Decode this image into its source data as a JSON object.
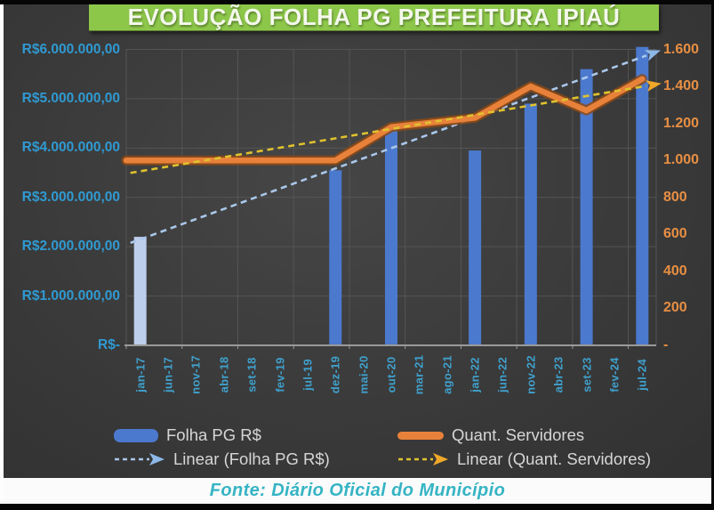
{
  "title": "EVOLUÇÃO FOLHA PG PREFEITURA IPIAÚ",
  "source": "Fonte: Diário Oficial do Município",
  "legend": {
    "items": [
      {
        "label": "Folha PG R$",
        "type": "bar"
      },
      {
        "label": "Quant. Servidores",
        "type": "line"
      },
      {
        "label": "Linear (Folha PG R$)",
        "type": "trend-blue"
      },
      {
        "label": "Linear (Quant. Servidores)",
        "type": "trend-yellow"
      }
    ]
  },
  "colors": {
    "title_bg": "#8dc74a",
    "title_text": "#f4f8ec",
    "panel": "#3b3b3b",
    "bar": "#4b79ce",
    "bar_first": "#bdcdec",
    "line": "#e8813a",
    "line_edge": "#8c4a16",
    "trend_folha": "#aac7ea",
    "trend_quant": "#e0c22e",
    "arrow_folha": "#8db8e8",
    "arrow_quant": "#f0a82a",
    "left_axis": "#2f9ad2",
    "right_axis": "#e88f43",
    "x_axis": "#3fa0cc",
    "grid": "#5a5a5a",
    "axis_line": "#9a9a9a",
    "legend_text": "#d6d6d6",
    "footer_text": "#35b4c4"
  },
  "chart_data": {
    "type": "bar+line combo",
    "title": "EVOLUÇÃO FOLHA PG PREFEITURA IPIAÚ",
    "grid": true,
    "legend_position": "bottom",
    "categories": [
      "jan-17",
      "jun-17",
      "nov-17",
      "abr-18",
      "set-18",
      "fev-19",
      "jul-19",
      "dez-19",
      "mai-20",
      "out-20",
      "mar-21",
      "ago-21",
      "jan-22",
      "jun-22",
      "nov-22",
      "abr-23",
      "set-23",
      "fev-24",
      "jul-24"
    ],
    "series": [
      {
        "name": "Folha PG R$",
        "type": "bar",
        "axis": "left",
        "values": [
          2200000,
          null,
          null,
          null,
          null,
          null,
          null,
          3550000,
          null,
          4400000,
          null,
          null,
          3950000,
          null,
          4900000,
          null,
          5600000,
          null,
          6050000
        ]
      },
      {
        "name": "Quant. Servidores",
        "type": "line",
        "axis": "right",
        "values": [
          1000,
          null,
          null,
          null,
          null,
          null,
          null,
          1000,
          null,
          1180,
          null,
          null,
          1230,
          null,
          1400,
          null,
          1270,
          null,
          1440
        ]
      }
    ],
    "trendlines": [
      {
        "name": "Linear (Folha PG R$)",
        "series": 0
      },
      {
        "name": "Linear (Quant. Servidores)",
        "series": 1
      }
    ],
    "left_axis": {
      "min": 0,
      "max": 6000000,
      "step": 1000000,
      "ticks": [
        "R$6.000.000,00",
        "R$5.000.000,00",
        "R$4.000.000,00",
        "R$3.000.000,00",
        "R$2.000.000,00",
        "R$1.000.000,00",
        "R$-"
      ]
    },
    "right_axis": {
      "min": 0,
      "max": 1600,
      "step": 200,
      "ticks": [
        "1.600",
        "1.400",
        "1.200",
        "1.000",
        "800",
        "600",
        "400",
        "200",
        "-"
      ]
    }
  }
}
